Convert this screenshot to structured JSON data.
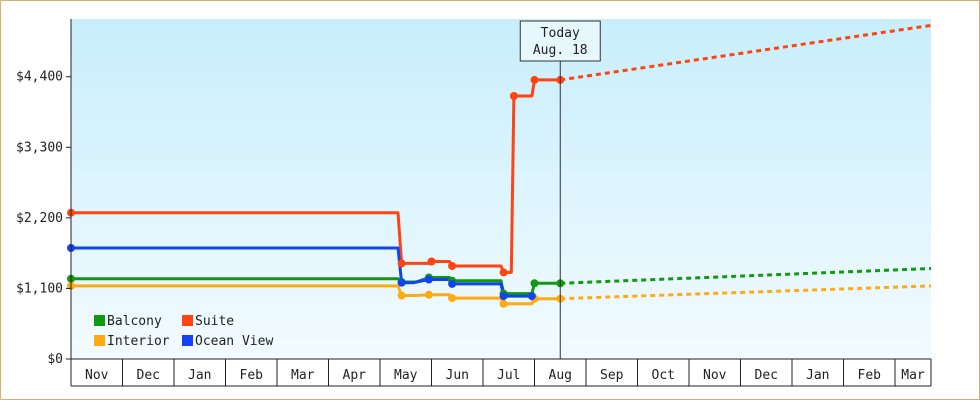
{
  "chart_data": {
    "type": "line",
    "title": "",
    "xlabel": "",
    "ylabel": "",
    "ylim": [
      0,
      4400
    ],
    "yticks": [
      "$0",
      "$1,100",
      "$2,200",
      "$3,300",
      "$4,400"
    ],
    "ytick_values": [
      0,
      1100,
      2200,
      3300,
      4400
    ],
    "months": [
      "Nov",
      "Dec",
      "Jan",
      "Feb",
      "Mar",
      "Apr",
      "May",
      "Jun",
      "Jul",
      "Aug",
      "Sep",
      "Oct",
      "Nov",
      "Dec",
      "Jan",
      "Feb",
      "Mar"
    ],
    "grid": false,
    "legend_position": "bottom-left",
    "today_marker": {
      "line1": "Today",
      "line2": "Aug. 18",
      "x": 9.5
    },
    "series": [
      {
        "name": "Balcony",
        "color": "#119911",
        "points": [
          [
            0,
            1250
          ],
          [
            6.35,
            1250
          ],
          [
            6.42,
            1200
          ],
          [
            6.7,
            1200
          ],
          [
            6.95,
            1270
          ],
          [
            7.35,
            1270
          ],
          [
            7.4,
            1220
          ],
          [
            8.35,
            1220
          ],
          [
            8.4,
            1020
          ],
          [
            8.95,
            1020
          ],
          [
            9.0,
            1180
          ],
          [
            9.5,
            1180
          ]
        ],
        "forecast": [
          [
            9.5,
            1180
          ],
          [
            16.8,
            1410
          ]
        ]
      },
      {
        "name": "Suite",
        "color": "#ff4411",
        "points": [
          [
            0,
            2280
          ],
          [
            6.35,
            2280
          ],
          [
            6.42,
            1490
          ],
          [
            6.95,
            1490
          ],
          [
            7.0,
            1520
          ],
          [
            7.35,
            1520
          ],
          [
            7.4,
            1450
          ],
          [
            8.35,
            1450
          ],
          [
            8.4,
            1350
          ],
          [
            8.55,
            1350
          ],
          [
            8.6,
            4100
          ],
          [
            8.95,
            4100
          ],
          [
            9.0,
            4350
          ],
          [
            9.5,
            4350
          ]
        ],
        "forecast": [
          [
            9.5,
            4350
          ],
          [
            16.8,
            5200
          ]
        ]
      },
      {
        "name": "Interior",
        "color": "#ffaa11",
        "points": [
          [
            0,
            1140
          ],
          [
            6.35,
            1140
          ],
          [
            6.42,
            990
          ],
          [
            6.7,
            990
          ],
          [
            6.95,
            1000
          ],
          [
            7.35,
            1000
          ],
          [
            7.4,
            950
          ],
          [
            8.35,
            950
          ],
          [
            8.4,
            860
          ],
          [
            8.95,
            860
          ],
          [
            9.0,
            940
          ],
          [
            9.5,
            940
          ]
        ],
        "forecast": [
          [
            9.5,
            940
          ],
          [
            16.8,
            1140
          ]
        ]
      },
      {
        "name": "Ocean View",
        "color": "#1144ee",
        "points": [
          [
            0,
            1730
          ],
          [
            6.35,
            1730
          ],
          [
            6.42,
            1190
          ],
          [
            6.65,
            1190
          ],
          [
            6.95,
            1240
          ],
          [
            7.35,
            1240
          ],
          [
            7.4,
            1170
          ],
          [
            8.35,
            1170
          ],
          [
            8.4,
            980
          ],
          [
            8.95,
            980
          ]
        ],
        "forecast": []
      }
    ]
  }
}
